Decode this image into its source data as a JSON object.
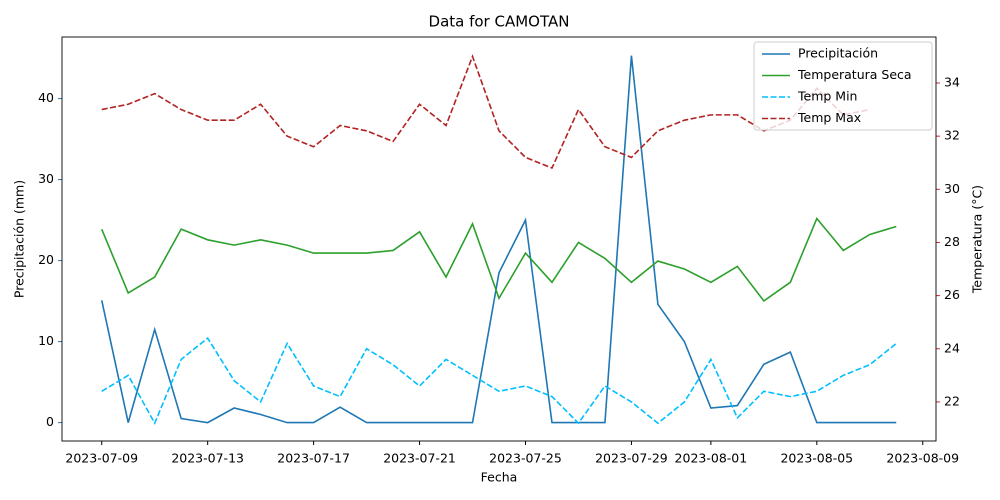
{
  "chart_data": {
    "type": "line",
    "title": "Data for CAMOTAN",
    "xlabel": "Fecha",
    "ylabel": "Precipitación (mm)",
    "y2label": "Temperatura (°C)",
    "ylabel_color": "#1f77b4",
    "y2label_color": "#d62728",
    "x": [
      "2023-07-09",
      "2023-07-10",
      "2023-07-11",
      "2023-07-12",
      "2023-07-13",
      "2023-07-14",
      "2023-07-15",
      "2023-07-16",
      "2023-07-17",
      "2023-07-18",
      "2023-07-19",
      "2023-07-20",
      "2023-07-21",
      "2023-07-22",
      "2023-07-23",
      "2023-07-24",
      "2023-07-25",
      "2023-07-26",
      "2023-07-27",
      "2023-07-28",
      "2023-07-29",
      "2023-07-30",
      "2023-07-31",
      "2023-08-01",
      "2023-08-02",
      "2023-08-03",
      "2023-08-04",
      "2023-08-05",
      "2023-08-06",
      "2023-08-07",
      "2023-08-08"
    ],
    "xlim": [
      "2023-07-07T12:00:00Z",
      "2023-08-09T12:00:00Z"
    ],
    "xticks": [
      "2023-07-09",
      "2023-07-13",
      "2023-07-17",
      "2023-07-21",
      "2023-07-25",
      "2023-07-29",
      "2023-08-01",
      "2023-08-05",
      "2023-08-09"
    ],
    "ylim": [
      -2.27,
      47.6
    ],
    "yticks": [
      0,
      10,
      20,
      30,
      40
    ],
    "y2lim": [
      20.53,
      35.73
    ],
    "y2ticks": [
      22,
      24,
      26,
      28,
      30,
      32,
      34
    ],
    "legend": "upper right",
    "series": [
      {
        "name": "Precipitación",
        "color": "#1f77b4",
        "dashed": false,
        "values": [
          15.1,
          0,
          11.5,
          0.5,
          0,
          1.8,
          1.0,
          0,
          0,
          1.9,
          0,
          0,
          0,
          0,
          0,
          18.5,
          25.0,
          0,
          0,
          0,
          45.3,
          14.6,
          10.0,
          1.8,
          2.1,
          7.2,
          8.7,
          0,
          0,
          0,
          0
        ]
      },
      {
        "name": "Temperatura Seca",
        "color": "#2ca02c",
        "dashed": false,
        "axis": "y2",
        "values": [
          28.5,
          26.1,
          26.7,
          28.5,
          28.1,
          27.9,
          28.1,
          27.9,
          27.6,
          27.6,
          27.6,
          27.7,
          28.4,
          26.7,
          28.7,
          25.9,
          27.6,
          26.5,
          28.0,
          27.4,
          26.5,
          27.3,
          27.0,
          26.5,
          27.1,
          25.8,
          26.5,
          28.9,
          27.7,
          28.3,
          28.6
        ]
      },
      {
        "name": "Temp Min",
        "color": "#00bfff",
        "dashed": true,
        "axis": "y2",
        "values": [
          22.4,
          23.0,
          21.2,
          23.6,
          24.4,
          22.8,
          22.0,
          24.2,
          22.6,
          22.2,
          24.0,
          23.4,
          22.6,
          23.6,
          23.0,
          22.4,
          22.6,
          22.2,
          21.2,
          22.6,
          22.0,
          21.2,
          22.0,
          23.6,
          21.4,
          22.4,
          22.2,
          22.4,
          23.0,
          23.4,
          24.2
        ]
      },
      {
        "name": "Temp Max",
        "color": "#b22222",
        "dashed": true,
        "axis": "y2",
        "values": [
          33.0,
          33.2,
          33.6,
          33.0,
          32.6,
          32.6,
          33.2,
          32.0,
          31.6,
          32.4,
          32.2,
          31.8,
          33.2,
          32.4,
          35.0,
          32.2,
          31.2,
          30.8,
          33.0,
          31.6,
          31.2,
          32.2,
          32.6,
          32.8,
          32.8,
          32.2,
          32.6,
          33.8,
          32.8,
          33.0,
          null
        ]
      }
    ]
  }
}
